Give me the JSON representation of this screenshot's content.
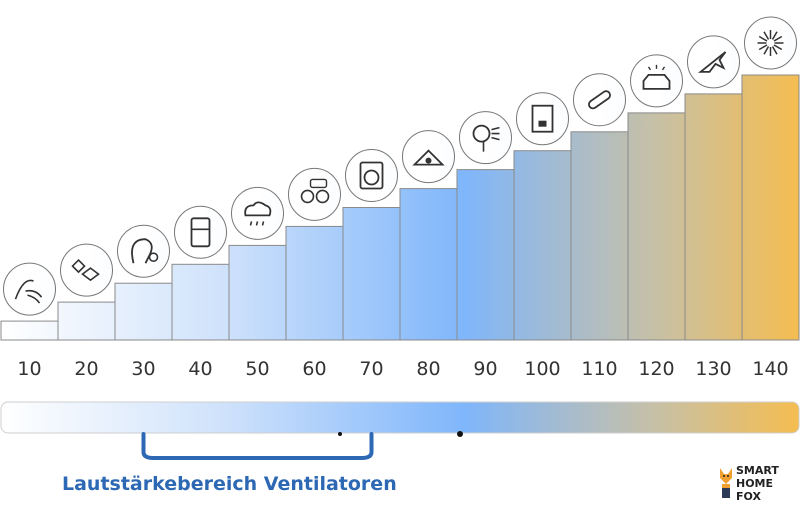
{
  "chart_data": {
    "type": "bar",
    "categories": [
      "10",
      "20",
      "30",
      "40",
      "50",
      "60",
      "70",
      "80",
      "90",
      "100",
      "110",
      "120",
      "130",
      "140"
    ],
    "values": [
      10,
      20,
      30,
      40,
      50,
      60,
      70,
      80,
      90,
      100,
      110,
      120,
      130,
      140
    ],
    "ylim": [
      0,
      140
    ],
    "grid": false,
    "legend": "none",
    "icons": [
      "breath-icon",
      "falling-leaves-icon",
      "whisper-icon",
      "refrigerator-icon",
      "rain-cloud-icon",
      "conversation-icon",
      "washing-machine-icon",
      "alarm-clock-icon",
      "hair-dryer-icon",
      "coffee-machine-icon",
      "chainsaw-icon",
      "car-horn-icon",
      "jet-plane-icon",
      "fireworks-icon"
    ],
    "colors": {
      "low": "#e4eefb",
      "mid": "#7fb6fb",
      "high": "#f5bd50",
      "bar_stroke": "#8a8a8a"
    }
  },
  "range": {
    "label": "Lautstärkebereich Ventilatoren",
    "from": 30,
    "to": 70,
    "color": "#2d68b4"
  },
  "logo": {
    "line1": "SMART",
    "line2": "HOME",
    "line3": "FOX"
  }
}
